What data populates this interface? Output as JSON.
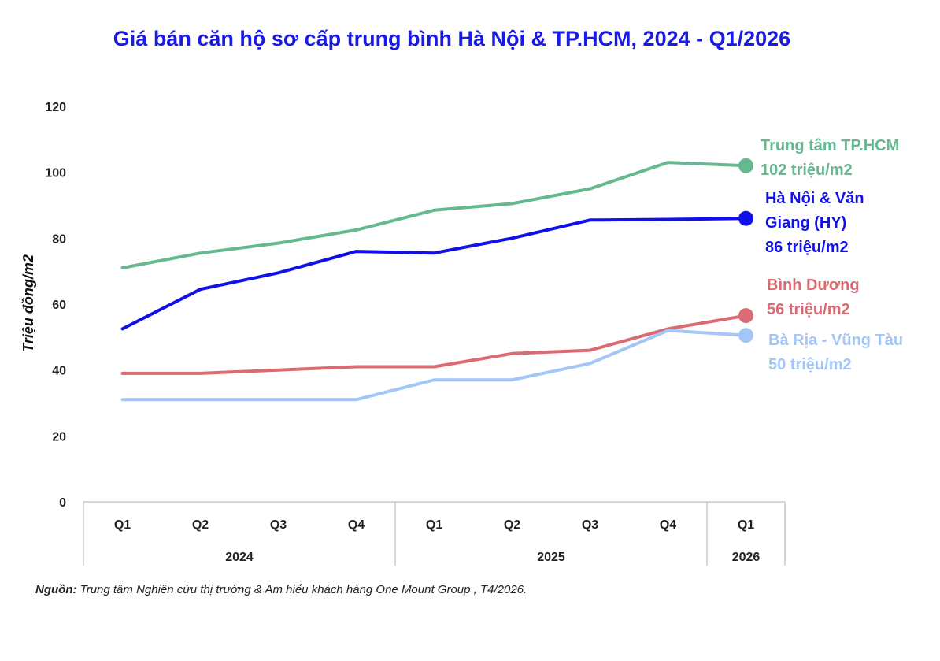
{
  "chart_data": {
    "type": "line",
    "title": "Giá bán căn hộ sơ cấp trung bình Hà Nội & TP.HCM, 2024 - Q1/2026",
    "ylabel": "Triệu đồng/m2",
    "xlabel": "",
    "ylim": [
      0,
      120
    ],
    "y_ticks": [
      0,
      20,
      40,
      60,
      80,
      100,
      120
    ],
    "grid": false,
    "categories": [
      "Q1",
      "Q2",
      "Q3",
      "Q4",
      "Q1",
      "Q2",
      "Q3",
      "Q4",
      "Q1"
    ],
    "groups": [
      {
        "label": "2024",
        "count": 4
      },
      {
        "label": "2025",
        "count": 4
      },
      {
        "label": "2026",
        "count": 1
      }
    ],
    "series": [
      {
        "name": "Trung tâm TP.HCM",
        "end_label": [
          "Trung tâm TP.HCM",
          "102 triệu/m2"
        ],
        "color": "#66b891",
        "values": [
          71,
          75.5,
          78.5,
          82.5,
          88.5,
          90.5,
          95,
          103,
          102
        ]
      },
      {
        "name": "Hà Nội & Văn Giang (HY)",
        "end_label": [
          "Hà Nội & Văn",
          "Giang (HY)",
          "86 triệu/m2"
        ],
        "color": "#1010e8",
        "values": [
          52.5,
          64.5,
          69.5,
          76,
          75.5,
          80,
          85.5,
          85.7,
          86
        ]
      },
      {
        "name": "Bình Dương",
        "end_label": [
          "Bình Dương",
          "56 triệu/m2"
        ],
        "color": "#db6b73",
        "values": [
          39,
          39,
          40,
          41,
          41,
          45,
          46,
          52.5,
          56.5
        ]
      },
      {
        "name": "Bà Rịa - Vũng Tàu",
        "end_label": [
          "Bà Rịa - Vũng Tàu",
          "50 triệu/m2"
        ],
        "color": "#a3c6f7",
        "values": [
          31,
          31,
          31,
          31,
          37,
          37,
          42,
          52,
          50.5
        ]
      }
    ]
  },
  "source": {
    "prefix": "Nguồn:",
    "text": " Trung tâm Nghiên cứu thị trường & Am hiểu khách hàng One Mount Group , T4/2026."
  }
}
